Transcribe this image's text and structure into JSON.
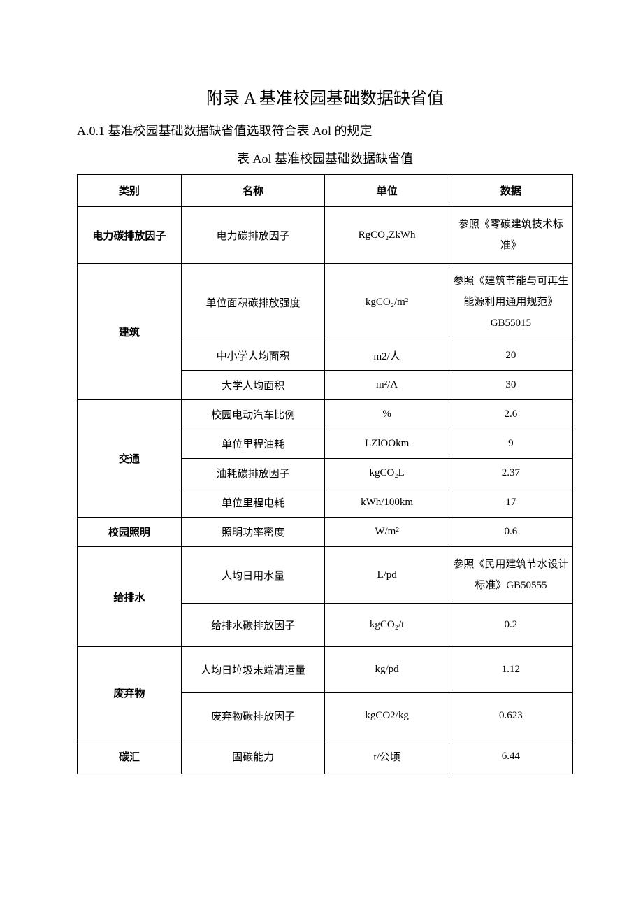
{
  "title": "附录 A 基准校园基础数据缺省值",
  "intro": "A.0.1 基准校园基础数据缺省值选取符合表 Aol 的规定",
  "caption": "表 Aol 基准校园基础数据缺省值",
  "headers": {
    "col1": "类别",
    "col2": "名称",
    "col3": "单位",
    "col4": "数据"
  },
  "categories": {
    "power": "电力碳排放因子",
    "building": "建筑",
    "traffic": "交通",
    "lighting": "校园照明",
    "water": "给排水",
    "waste": "废弃物",
    "carbon_sink": "碳汇"
  },
  "rows": {
    "power_factor": {
      "name": "电力碳排放因子",
      "unit": "RgCO₂ZkWh",
      "data": "参照《零碳建筑技术标准》"
    },
    "area_emission": {
      "name": "单位面积碳排放强度",
      "unit": "kgCO₂/m²",
      "data": "参照《建筑节能与可再生能源利用通用规范》GB55015"
    },
    "school_area": {
      "name": "中小学人均面积",
      "unit": "m2/人",
      "data": "20"
    },
    "university_area": {
      "name": "大学人均面积",
      "unit": "m²/Λ",
      "data": "30"
    },
    "ev_ratio": {
      "name": "校园电动汽车比例",
      "unit": "%",
      "data": "2.6"
    },
    "fuel_per_km": {
      "name": "单位里程油耗",
      "unit": "LZlOOkm",
      "data": "9"
    },
    "fuel_emission": {
      "name": "油耗碳排放因子",
      "unit": "kgCO₂L",
      "data": "2.37"
    },
    "elec_per_km": {
      "name": "单位里程电耗",
      "unit": "kWh/100km",
      "data": "17"
    },
    "lighting_density": {
      "name": "照明功率密度",
      "unit": "W/m²",
      "data": "0.6"
    },
    "water_per_capita": {
      "name": "人均日用水量",
      "unit": "L/pd",
      "data": "参照《民用建筑节水设计标准》GB50555"
    },
    "water_emission": {
      "name": "给排水碳排放因子",
      "unit": "kgCO₂/t",
      "data": "0.2"
    },
    "waste_per_capita": {
      "name": "人均日垃圾末端清运量",
      "unit": "kg/pd",
      "data": "1.12"
    },
    "waste_emission": {
      "name": "废弃物碳排放因子",
      "unit": "kgCO2/kg",
      "data": "0.623"
    },
    "carbon_absorb": {
      "name": "固碳能力",
      "unit": "t/公顷",
      "data": "6.44"
    }
  },
  "col_widths": {
    "c1": "21%",
    "c2": "29%",
    "c3": "25%",
    "c4": "25%"
  },
  "styles": {
    "title_fontsize": 24,
    "body_fontsize": 18,
    "cell_fontsize": 15,
    "border_color": "#000000",
    "background": "#ffffff",
    "text_color": "#000000"
  }
}
